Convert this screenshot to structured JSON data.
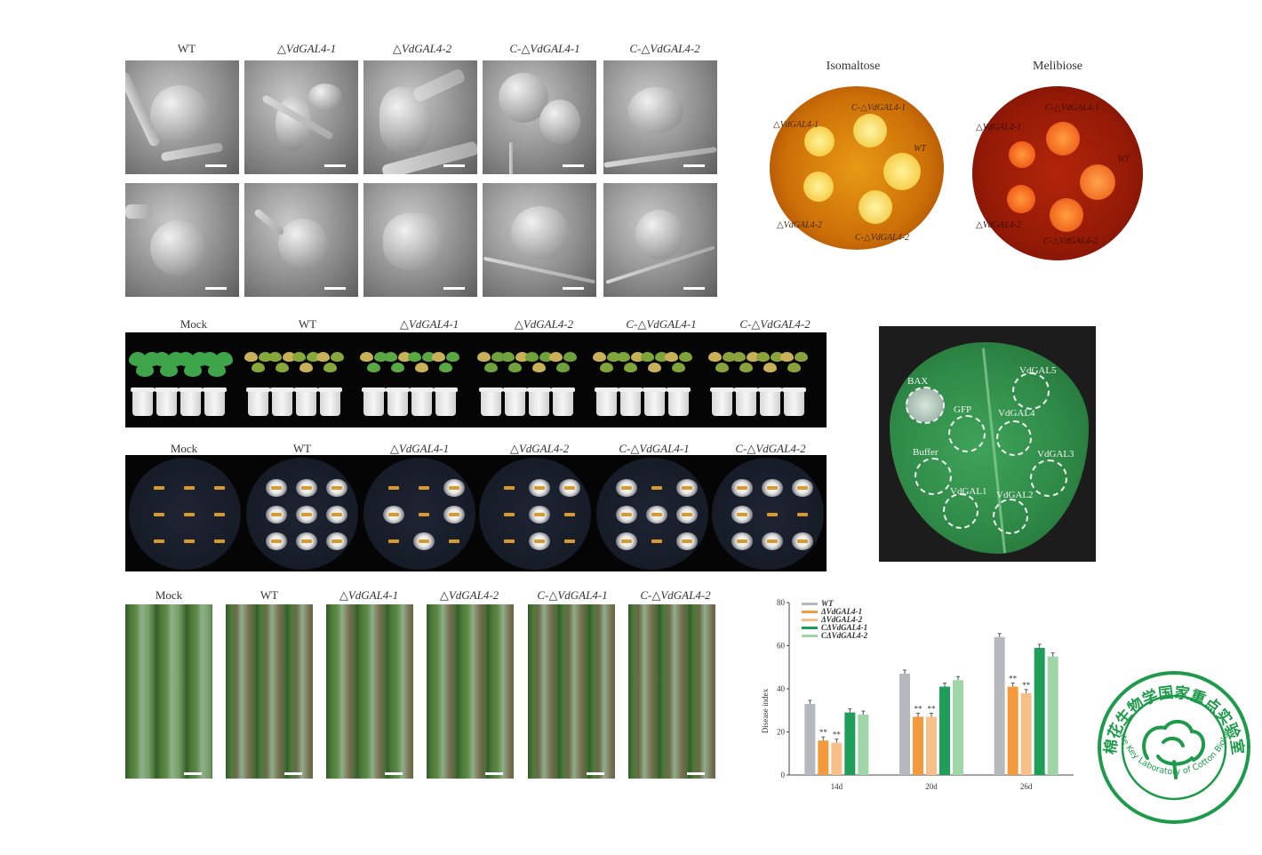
{
  "sem": {
    "columns": [
      "WT",
      "△VdGAL4-1",
      "△VdGAL4-2",
      "C-△VdGAL4-1",
      "C-△VdGAL4-2"
    ]
  },
  "sugar_plates": {
    "titles": [
      "Isomaltose",
      "Melibiose"
    ],
    "isomaltose_labels": [
      "△VdGAL4-1",
      "C-△VdGAL4-1",
      "WT",
      "△VdGAL4-2",
      "C-△VdGAL4-2"
    ],
    "melibiose_labels": [
      "△VdGAL4-1",
      "C-△VdGAL4-1",
      "WT",
      "△VdGAL4-2",
      "C-△VdGAL4-2"
    ]
  },
  "plants": {
    "columns": [
      "Mock",
      "WT",
      "△VdGAL4-1",
      "△VdGAL4-2",
      "C-△VdGAL4-1",
      "C-△VdGAL4-2"
    ]
  },
  "petri": {
    "columns": [
      "Mock",
      "WT",
      "△VdGAL4-1",
      "△VdGAL4-2",
      "C-△VdGAL4-1",
      "C-△VdGAL4-2"
    ]
  },
  "leaf_assay": {
    "labels": [
      "BAX",
      "VdGAL5",
      "GFP",
      "VdGAL4",
      "Buffer",
      "VdGAL3",
      "VdGAL1",
      "VdGAL2"
    ]
  },
  "stems": {
    "columns": [
      "Mock",
      "WT",
      "△VdGAL4-1",
      "△VdGAL4-2",
      "C-△VdGAL4-1",
      "C-△VdGAL4-2"
    ]
  },
  "chart_data": {
    "type": "bar",
    "categories": [
      "14d",
      "20d",
      "26d"
    ],
    "ylabel": "Disease index",
    "ylim": [
      0,
      80
    ],
    "yticks": [
      0,
      20,
      40,
      60,
      80
    ],
    "series": [
      {
        "name": "WT",
        "values": [
          33,
          47,
          64
        ],
        "color": "#b5b8bd"
      },
      {
        "name": "ΔVdGAL4-1",
        "values": [
          16,
          27,
          41
        ],
        "color": "#f29a3c"
      },
      {
        "name": "ΔVdGAL4-2",
        "values": [
          15,
          27,
          38
        ],
        "color": "#f7c08a"
      },
      {
        "name": "CΔVdGAL4-1",
        "values": [
          29,
          41,
          59
        ],
        "color": "#1f9e5a"
      },
      {
        "name": "CΔVdGAL4-2",
        "values": [
          28,
          44,
          55
        ],
        "color": "#9ed6a8"
      }
    ],
    "significance": [
      [
        "",
        "**",
        "**",
        "",
        ""
      ],
      [
        "",
        "**",
        "**",
        "",
        ""
      ],
      [
        "",
        "**",
        "**",
        "",
        ""
      ]
    ]
  },
  "logo": {
    "chinese": "棉花生物学国家重点实验室",
    "english": "State Key Laboratory of Cotton Biology",
    "color": "#1d9a4a"
  }
}
